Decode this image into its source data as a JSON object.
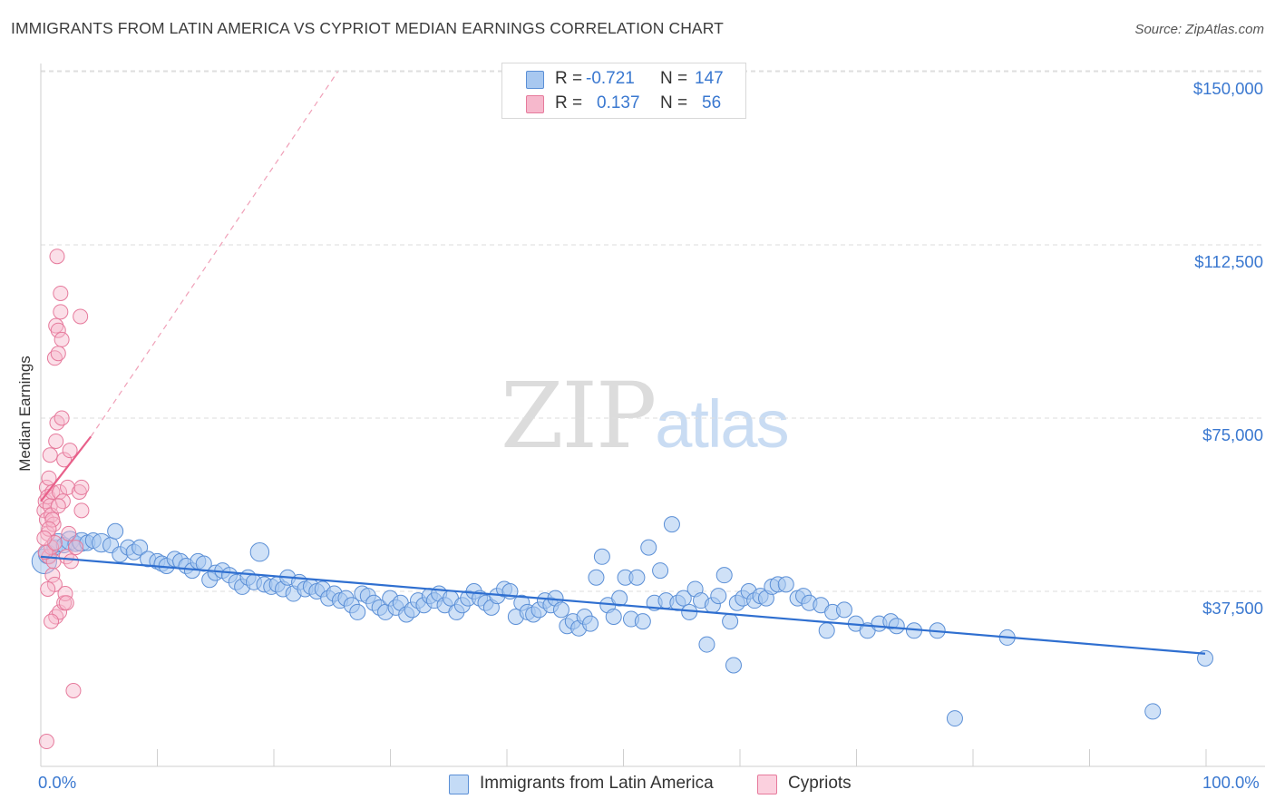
{
  "header": {
    "title": "IMMIGRANTS FROM LATIN AMERICA VS CYPRIOT MEDIAN EARNINGS CORRELATION CHART",
    "source": "Source: ZipAtlas.com"
  },
  "watermark": {
    "zip": "ZIP",
    "atlas": "atlas"
  },
  "legend_top": {
    "r_label": "R =",
    "n_label": "N =",
    "rows": [
      {
        "r": "-0.721",
        "n": "147"
      },
      {
        "r": "0.137",
        "n": "56"
      }
    ]
  },
  "legend_bottom": [
    "Immigrants from Latin America",
    "Cypriots"
  ],
  "colors": {
    "blue_fill": "#a8c8f0",
    "blue_stroke": "#5b8fd6",
    "blue_line": "#2f6fd0",
    "pink_fill": "#f6b8cc",
    "pink_stroke": "#e67a9c",
    "pink_line": "#e8608a",
    "grid": "#dedede",
    "tick_label": "#3a78d0"
  },
  "chart_data": {
    "type": "scatter",
    "title": "IMMIGRANTS FROM LATIN AMERICA VS CYPRIOT MEDIAN EARNINGS CORRELATION CHART",
    "xlabel": "",
    "ylabel": "Median Earnings",
    "xlim": [
      0,
      100
    ],
    "ylim": [
      2000,
      155000
    ],
    "x_tick_labels": [
      "0.0%",
      "100.0%"
    ],
    "y_ticks": [
      37500,
      75000,
      112500,
      150000
    ],
    "y_tick_labels": [
      "$37,500",
      "$75,000",
      "$112,500",
      "$150,000"
    ],
    "grid": true,
    "legend_position": "top-center",
    "series": [
      {
        "name": "Immigrants from Latin America",
        "r": -0.721,
        "n": 147,
        "trend": {
          "x": [
            0,
            100
          ],
          "y": [
            45000,
            24000
          ]
        },
        "points": [
          [
            0.3,
            44000,
            16
          ],
          [
            0.6,
            45500,
            12
          ],
          [
            1.2,
            47000,
            10
          ],
          [
            1.5,
            48000,
            12
          ],
          [
            2.0,
            47500,
            10
          ],
          [
            2.5,
            48500,
            12
          ],
          [
            3.0,
            47800,
            10
          ],
          [
            3.5,
            48200,
            12
          ],
          [
            4.0,
            48000,
            10
          ],
          [
            4.5,
            48500,
            10
          ],
          [
            5.2,
            48000,
            12
          ],
          [
            6.0,
            47500,
            10
          ],
          [
            6.4,
            50500,
            10
          ],
          [
            6.8,
            45500,
            10
          ],
          [
            7.5,
            47000,
            10
          ],
          [
            8.0,
            46000,
            10
          ],
          [
            8.5,
            47000,
            10
          ],
          [
            9.2,
            44500,
            10
          ],
          [
            10.0,
            44000,
            10
          ],
          [
            10.4,
            43500,
            10
          ],
          [
            10.8,
            43000,
            10
          ],
          [
            11.5,
            44500,
            10
          ],
          [
            12.0,
            44000,
            10
          ],
          [
            12.5,
            43000,
            10
          ],
          [
            13.0,
            42000,
            10
          ],
          [
            13.5,
            44000,
            10
          ],
          [
            14.0,
            43500,
            10
          ],
          [
            14.5,
            40000,
            10
          ],
          [
            15.0,
            41500,
            10
          ],
          [
            15.6,
            42000,
            10
          ],
          [
            16.2,
            41000,
            10
          ],
          [
            16.8,
            39500,
            10
          ],
          [
            17.3,
            38500,
            10
          ],
          [
            17.8,
            40500,
            10
          ],
          [
            18.3,
            39500,
            10
          ],
          [
            18.8,
            46000,
            12
          ],
          [
            19.2,
            39000,
            10
          ],
          [
            19.8,
            38500,
            10
          ],
          [
            20.3,
            39000,
            10
          ],
          [
            20.8,
            38000,
            10
          ],
          [
            21.2,
            40500,
            10
          ],
          [
            21.7,
            37000,
            10
          ],
          [
            22.2,
            39500,
            10
          ],
          [
            22.7,
            38000,
            10
          ],
          [
            23.2,
            38500,
            10
          ],
          [
            23.7,
            37500,
            10
          ],
          [
            24.2,
            38000,
            10
          ],
          [
            24.7,
            36000,
            10
          ],
          [
            25.2,
            37000,
            10
          ],
          [
            25.7,
            35500,
            10
          ],
          [
            26.2,
            36000,
            10
          ],
          [
            26.7,
            34500,
            10
          ],
          [
            27.2,
            33000,
            10
          ],
          [
            27.6,
            37000,
            10
          ],
          [
            28.1,
            36500,
            10
          ],
          [
            28.6,
            35000,
            10
          ],
          [
            29.1,
            34000,
            10
          ],
          [
            29.6,
            33000,
            10
          ],
          [
            30.0,
            36000,
            10
          ],
          [
            30.5,
            34000,
            10
          ],
          [
            30.9,
            35000,
            10
          ],
          [
            31.4,
            32500,
            10
          ],
          [
            31.9,
            33500,
            10
          ],
          [
            32.4,
            35500,
            10
          ],
          [
            32.9,
            34500,
            10
          ],
          [
            33.4,
            36500,
            10
          ],
          [
            33.8,
            35500,
            10
          ],
          [
            34.2,
            37000,
            10
          ],
          [
            34.7,
            34500,
            10
          ],
          [
            35.2,
            36000,
            10
          ],
          [
            35.7,
            33000,
            10
          ],
          [
            36.2,
            34500,
            10
          ],
          [
            36.7,
            36000,
            10
          ],
          [
            37.2,
            37500,
            10
          ],
          [
            37.7,
            36000,
            10
          ],
          [
            38.2,
            35000,
            10
          ],
          [
            38.7,
            34000,
            10
          ],
          [
            39.2,
            36500,
            10
          ],
          [
            39.8,
            38000,
            10
          ],
          [
            40.3,
            37500,
            10
          ],
          [
            40.8,
            32000,
            10
          ],
          [
            41.3,
            35000,
            10
          ],
          [
            41.8,
            33000,
            10
          ],
          [
            42.3,
            32500,
            10
          ],
          [
            42.8,
            33500,
            10
          ],
          [
            43.3,
            35500,
            10
          ],
          [
            43.8,
            34500,
            10
          ],
          [
            44.2,
            36000,
            10
          ],
          [
            44.7,
            33500,
            10
          ],
          [
            45.2,
            30000,
            10
          ],
          [
            45.7,
            31000,
            10
          ],
          [
            46.2,
            29500,
            10
          ],
          [
            46.7,
            32000,
            10
          ],
          [
            47.2,
            30500,
            10
          ],
          [
            47.7,
            40500,
            10
          ],
          [
            48.2,
            45000,
            10
          ],
          [
            48.7,
            34500,
            10
          ],
          [
            49.2,
            32000,
            10
          ],
          [
            49.7,
            36000,
            10
          ],
          [
            50.2,
            40500,
            10
          ],
          [
            50.7,
            31500,
            10
          ],
          [
            51.2,
            40500,
            10
          ],
          [
            51.7,
            31000,
            10
          ],
          [
            52.2,
            47000,
            10
          ],
          [
            52.7,
            35000,
            10
          ],
          [
            53.2,
            42000,
            10
          ],
          [
            53.7,
            35500,
            10
          ],
          [
            54.2,
            52000,
            10
          ],
          [
            54.7,
            35000,
            10
          ],
          [
            55.2,
            36000,
            10
          ],
          [
            55.7,
            33000,
            10
          ],
          [
            56.2,
            38000,
            10
          ],
          [
            56.7,
            35500,
            10
          ],
          [
            57.2,
            26000,
            10
          ],
          [
            57.7,
            34500,
            10
          ],
          [
            58.2,
            36500,
            10
          ],
          [
            58.7,
            41000,
            10
          ],
          [
            59.2,
            31000,
            10
          ],
          [
            59.5,
            21500,
            10
          ],
          [
            59.8,
            35000,
            10
          ],
          [
            60.3,
            36000,
            10
          ],
          [
            60.8,
            37500,
            10
          ],
          [
            61.3,
            35500,
            10
          ],
          [
            61.8,
            36500,
            10
          ],
          [
            62.3,
            36000,
            10
          ],
          [
            62.8,
            38500,
            10
          ],
          [
            63.3,
            39000,
            10
          ],
          [
            64.0,
            39000,
            10
          ],
          [
            65.0,
            36000,
            10
          ],
          [
            65.5,
            36500,
            10
          ],
          [
            66.0,
            35000,
            10
          ],
          [
            67.0,
            34500,
            10
          ],
          [
            67.5,
            29000,
            10
          ],
          [
            68.0,
            33000,
            10
          ],
          [
            69.0,
            33500,
            10
          ],
          [
            70.0,
            30500,
            10
          ],
          [
            71.0,
            29000,
            10
          ],
          [
            72.0,
            30500,
            10
          ],
          [
            73.0,
            31000,
            10
          ],
          [
            73.5,
            30000,
            10
          ],
          [
            75.0,
            29000,
            10
          ],
          [
            77.0,
            29000,
            10
          ],
          [
            78.5,
            10000,
            10
          ],
          [
            83.0,
            27500,
            10
          ],
          [
            95.5,
            11500,
            10
          ],
          [
            100.0,
            23000,
            10
          ]
        ]
      },
      {
        "name": "Cypriots",
        "r": 0.137,
        "n": 56,
        "trend": {
          "x": [
            0,
            4.3
          ],
          "y": [
            57000,
            71000
          ],
          "dashed_extension": {
            "x": [
              4.3,
              25.5
            ],
            "y": [
              71000,
              150000
            ]
          }
        },
        "points": [
          [
            0.3,
            55000,
            10
          ],
          [
            0.4,
            57000,
            10
          ],
          [
            0.5,
            53000,
            10
          ],
          [
            0.5,
            60000,
            10
          ],
          [
            0.6,
            58000,
            10
          ],
          [
            0.6,
            50000,
            10
          ],
          [
            0.7,
            62000,
            10
          ],
          [
            0.7,
            45000,
            10
          ],
          [
            0.8,
            56000,
            10
          ],
          [
            0.8,
            67000,
            10
          ],
          [
            0.9,
            47000,
            10
          ],
          [
            0.9,
            54000,
            10
          ],
          [
            1.0,
            41000,
            10
          ],
          [
            1.0,
            59000,
            10
          ],
          [
            1.1,
            52000,
            10
          ],
          [
            1.1,
            44000,
            10
          ],
          [
            1.2,
            39000,
            10
          ],
          [
            1.2,
            88000,
            10
          ],
          [
            1.3,
            95000,
            10
          ],
          [
            1.3,
            70000,
            10
          ],
          [
            1.3,
            32000,
            10
          ],
          [
            1.4,
            110000,
            10
          ],
          [
            1.4,
            74000,
            10
          ],
          [
            1.5,
            94000,
            10
          ],
          [
            1.5,
            89000,
            10
          ],
          [
            1.6,
            59000,
            10
          ],
          [
            1.6,
            33000,
            10
          ],
          [
            1.7,
            102000,
            10
          ],
          [
            1.7,
            98000,
            10
          ],
          [
            1.8,
            92000,
            10
          ],
          [
            1.8,
            75000,
            10
          ],
          [
            1.9,
            57000,
            10
          ],
          [
            2.0,
            66000,
            10
          ],
          [
            2.0,
            35000,
            10
          ],
          [
            2.1,
            37000,
            10
          ],
          [
            2.2,
            45000,
            10
          ],
          [
            2.3,
            60000,
            10
          ],
          [
            2.4,
            50000,
            10
          ],
          [
            2.5,
            68000,
            10
          ],
          [
            2.6,
            44000,
            10
          ],
          [
            2.8,
            16000,
            10
          ],
          [
            3.0,
            47000,
            10
          ],
          [
            3.3,
            59000,
            10
          ],
          [
            3.5,
            60000,
            10
          ],
          [
            3.5,
            55000,
            10
          ],
          [
            3.4,
            97000,
            10
          ],
          [
            0.5,
            5000,
            10
          ],
          [
            0.6,
            38000,
            10
          ],
          [
            0.4,
            46000,
            10
          ],
          [
            0.9,
            31000,
            10
          ],
          [
            1.0,
            53000,
            10
          ],
          [
            1.2,
            48000,
            10
          ],
          [
            0.7,
            51000,
            10
          ],
          [
            0.3,
            49000,
            10
          ],
          [
            1.5,
            56000,
            10
          ],
          [
            2.2,
            35000,
            10
          ]
        ]
      }
    ]
  }
}
